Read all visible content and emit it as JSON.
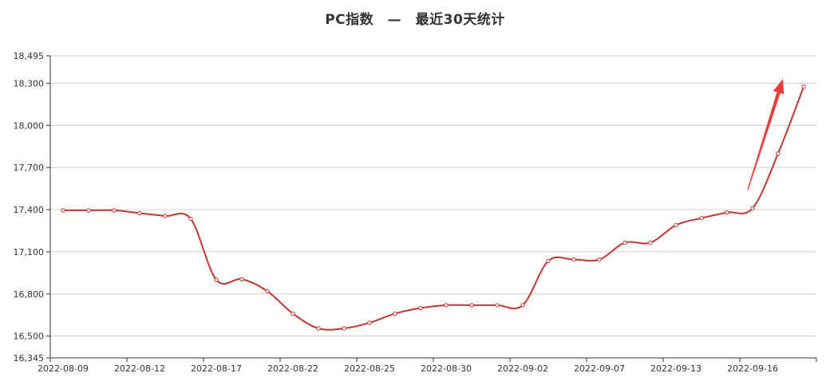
{
  "chart_data": {
    "type": "line",
    "title": "PC指数　—　最近30天统计",
    "xlabel": "",
    "ylabel": "",
    "ylim": [
      16345,
      18495
    ],
    "y_ticks": [
      "16,345",
      "16,500",
      "16,800",
      "17,100",
      "17,400",
      "17,700",
      "18,000",
      "18,300",
      "18,495"
    ],
    "x_tick_labels": [
      "2022-08-09",
      "2022-08-12",
      "2022-08-17",
      "2022-08-22",
      "2022-08-25",
      "2022-08-30",
      "2022-09-02",
      "2022-09-07",
      "2022-09-13",
      "2022-09-16"
    ],
    "grid": true,
    "line_color": "#c23531",
    "arrow_color": "#f03a3a",
    "series": [
      {
        "values": [
          17395,
          17395,
          17395,
          17375,
          17355,
          17335,
          16900,
          16905,
          16820,
          16660,
          16555,
          16555,
          16595,
          16660,
          16700,
          16720,
          16720,
          16720,
          16720,
          17035,
          17045,
          17045,
          17165,
          17165,
          17290,
          17340,
          17380,
          17410,
          17800,
          18275
        ]
      }
    ]
  }
}
